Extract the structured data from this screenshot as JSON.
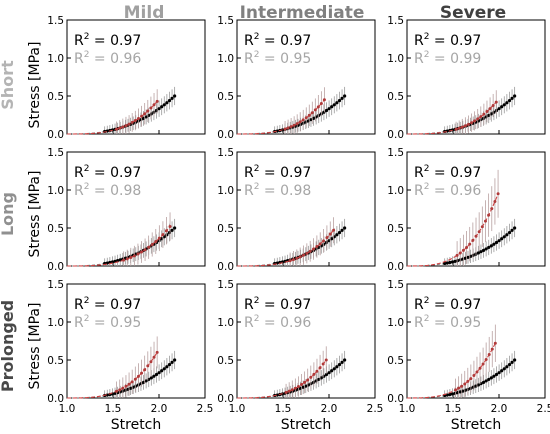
{
  "columns": [
    {
      "label": "Mild",
      "color": "#a0a0a0"
    },
    {
      "label": "Intermediate",
      "color": "#808080"
    },
    {
      "label": "Severe",
      "color": "#404040"
    }
  ],
  "rows": [
    {
      "label": "Short",
      "color": "#b4b4b4"
    },
    {
      "label": "Long",
      "color": "#909090"
    },
    {
      "label": "Prolonged",
      "color": "#484848"
    }
  ],
  "colors": {
    "reference": "#000000",
    "reference_fit": "#888888",
    "condition": "#b03a3a",
    "condition_fit": "#d04040",
    "r2_black": "#000000",
    "r2_gray": "#a6a6a6"
  },
  "chart_data": {
    "type": "scatter",
    "xlabel": "Stretch",
    "ylabel": "Stress [MPa]",
    "xlim": [
      1.0,
      2.5
    ],
    "ylim": [
      0,
      1.5
    ],
    "xticks": [
      "1.0",
      "1.5",
      "2.0",
      "2.5"
    ],
    "yticks": [
      "0.0",
      "0.5",
      "1.0",
      "1.5"
    ],
    "reference_curve": {
      "stretch_min": 1.0,
      "stretch_max": 2.17,
      "stress_max": 0.5,
      "n_points": 28
    },
    "panels": [
      {
        "row": "Short",
        "column": "Mild",
        "r2_reference": "0.97",
        "r2_condition": "0.96",
        "condition_curve": {
          "stretch_max": 1.98,
          "stress_max": 0.43
        }
      },
      {
        "row": "Short",
        "column": "Intermediate",
        "r2_reference": "0.97",
        "r2_condition": "0.95",
        "condition_curve": {
          "stretch_max": 1.95,
          "stress_max": 0.45
        }
      },
      {
        "row": "Short",
        "column": "Severe",
        "r2_reference": "0.97",
        "r2_condition": "0.99",
        "condition_curve": {
          "stretch_max": 1.97,
          "stress_max": 0.42
        }
      },
      {
        "row": "Long",
        "column": "Mild",
        "r2_reference": "0.97",
        "r2_condition": "0.98",
        "condition_curve": {
          "stretch_max": 2.12,
          "stress_max": 0.52
        }
      },
      {
        "row": "Long",
        "column": "Intermediate",
        "r2_reference": "0.97",
        "r2_condition": "0.98",
        "condition_curve": {
          "stretch_max": 2.05,
          "stress_max": 0.47
        }
      },
      {
        "row": "Long",
        "column": "Severe",
        "r2_reference": "0.97",
        "r2_condition": "0.96",
        "condition_curve": {
          "stretch_max": 1.99,
          "stress_max": 0.95
        }
      },
      {
        "row": "Prolonged",
        "column": "Mild",
        "r2_reference": "0.97",
        "r2_condition": "0.95",
        "condition_curve": {
          "stretch_max": 1.98,
          "stress_max": 0.6
        }
      },
      {
        "row": "Prolonged",
        "column": "Intermediate",
        "r2_reference": "0.97",
        "r2_condition": "0.96",
        "condition_curve": {
          "stretch_max": 1.97,
          "stress_max": 0.5
        }
      },
      {
        "row": "Prolonged",
        "column": "Severe",
        "r2_reference": "0.97",
        "r2_condition": "0.95",
        "condition_curve": {
          "stretch_max": 1.96,
          "stress_max": 0.72
        }
      }
    ]
  }
}
